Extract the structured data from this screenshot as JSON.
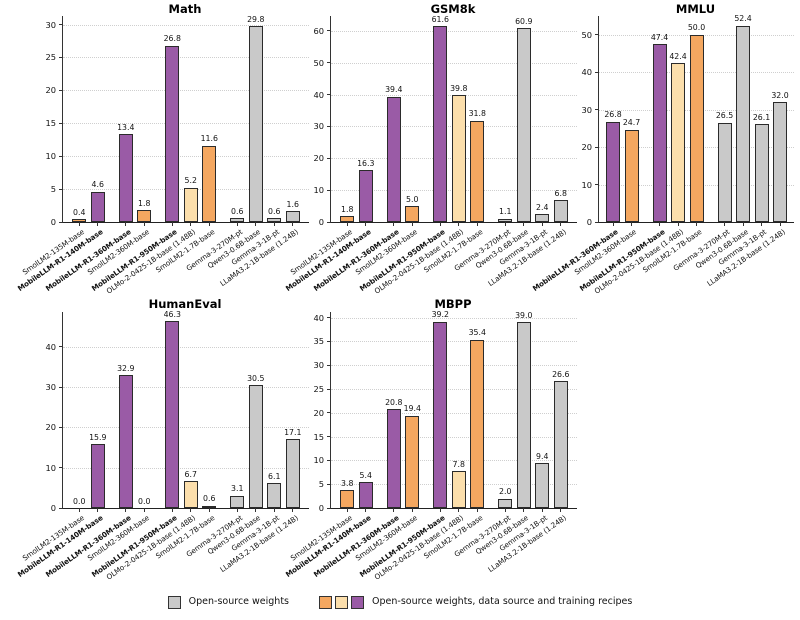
{
  "colors": {
    "purple": "#9A5BA6",
    "orange": "#F4A760",
    "cream": "#FCDFAC",
    "gray": "#C9C9C9"
  },
  "legend": {
    "position": "bottom-center",
    "items": [
      {
        "label": "Open-source weights",
        "patches": [
          "gray"
        ]
      },
      {
        "label": "Open-source weights, data source and training recipes",
        "patches": [
          "orange",
          "cream",
          "purple"
        ]
      }
    ]
  },
  "chart_data": [
    {
      "type": "bar",
      "title": "Math",
      "yticks": [
        0,
        5,
        10,
        15,
        20,
        25,
        30
      ],
      "ylim": [
        0,
        31.3
      ],
      "grid": true,
      "groups": [
        2,
        2,
        3,
        4
      ],
      "categories": [
        "SmolLM2-135M-base",
        "MobileLLM-R1-140M-base",
        "MobileLLM-R1-360M-base",
        "SmolLM2-360M-base",
        "MobileLLM-R1-950M-base",
        "OLMo-2-0425-1B-base (1.48B)",
        "SmolLM2-1.7B-base",
        "Gemma-3-270M-pt",
        "Qwen3-0.6B-base",
        "Gemma-3-1B-pt",
        "LLaMA3.2-1B-base (1.24B)"
      ],
      "values": [
        0.4,
        4.6,
        13.4,
        1.8,
        26.8,
        5.2,
        11.6,
        0.6,
        29.8,
        0.6,
        1.6
      ],
      "bar_colors": [
        "orange",
        "purple",
        "purple",
        "orange",
        "purple",
        "cream",
        "orange",
        "gray",
        "gray",
        "gray",
        "gray"
      ]
    },
    {
      "type": "bar",
      "title": "GSM8k",
      "yticks": [
        0,
        10,
        20,
        30,
        40,
        50,
        60
      ],
      "ylim": [
        0,
        64.7
      ],
      "grid": true,
      "groups": [
        2,
        2,
        3,
        4
      ],
      "categories": [
        "SmolLM2-135M-base",
        "MobileLLM-R1-140M-base",
        "MobileLLM-R1-360M-base",
        "SmolLM2-360M-base",
        "MobileLLM-R1-950M-base",
        "OLMo-2-0425-1B-base (1.48B)",
        "SmolLM2-1.7B-base",
        "Gemma-3-270M-pt",
        "Qwen3-0.6B-base",
        "Gemma-3-1B-pt",
        "LLaMA3.2-1B-base (1.24B)"
      ],
      "values": [
        1.8,
        16.3,
        39.4,
        5.0,
        61.6,
        39.8,
        31.8,
        1.1,
        60.9,
        2.4,
        6.8
      ],
      "bar_colors": [
        "orange",
        "purple",
        "purple",
        "orange",
        "purple",
        "cream",
        "orange",
        "gray",
        "gray",
        "gray",
        "gray"
      ]
    },
    {
      "type": "bar",
      "title": "MMLU",
      "yticks": [
        0,
        10,
        20,
        30,
        40,
        50
      ],
      "ylim": [
        0,
        55
      ],
      "grid": true,
      "groups": [
        2,
        3,
        4
      ],
      "categories": [
        "MobileLLM-R1-360M-base",
        "SmolLM2-360M-base",
        "MobileLLM-R1-950M-base",
        "OLMo-2-0425-1B-base (1.48B)",
        "SmolLM2-1.7B-base",
        "Gemma-3-270M-pt",
        "Qwen3-0.6B-base",
        "Gemma-3-1B-pt",
        "LLaMA3.2-1B-base (1.24B)"
      ],
      "values": [
        26.8,
        24.7,
        47.4,
        42.4,
        50.0,
        26.5,
        52.4,
        26.1,
        32.0
      ],
      "bar_colors": [
        "purple",
        "orange",
        "purple",
        "cream",
        "orange",
        "gray",
        "gray",
        "gray",
        "gray"
      ]
    },
    {
      "type": "bar",
      "title": "HumanEval",
      "yticks": [
        0,
        10,
        20,
        30,
        40
      ],
      "ylim": [
        0,
        48.6
      ],
      "grid": true,
      "groups": [
        2,
        2,
        3,
        4
      ],
      "categories": [
        "SmolLM2-135M-base",
        "MobileLLM-R1-140M-base",
        "MobileLLM-R1-360M-base",
        "SmolLM2-360M-base",
        "MobileLLM-R1-950M-base",
        "OLMo-2-0425-1B-base (1.48B)",
        "SmolLM2-1.7B-base",
        "Gemma-3-270M-pt",
        "Qwen3-0.6B-base",
        "Gemma-3-1B-pt",
        "LLaMA3.2-1B-base (1.24B)"
      ],
      "values": [
        0.0,
        15.9,
        32.9,
        0.0,
        46.3,
        6.7,
        0.6,
        3.1,
        30.5,
        6.1,
        17.1
      ],
      "bar_colors": [
        "orange",
        "purple",
        "purple",
        "orange",
        "purple",
        "cream",
        "orange",
        "gray",
        "gray",
        "gray",
        "gray"
      ]
    },
    {
      "type": "bar",
      "title": "MBPP",
      "yticks": [
        0,
        5,
        10,
        15,
        20,
        25,
        30,
        35,
        40
      ],
      "ylim": [
        0,
        41.2
      ],
      "grid": true,
      "groups": [
        2,
        2,
        3,
        4
      ],
      "categories": [
        "SmolLM2-135M-base",
        "MobileLLM-R1-140M-base",
        "MobileLLM-R1-360M-base",
        "SmolLM2-360M-base",
        "MobileLLM-R1-950M-base",
        "OLMo-2-0425-1B-base (1.48B)",
        "SmolLM2-1.7B-base",
        "Gemma-3-270M-pt",
        "Qwen3-0.6B-base",
        "Gemma-3-1B-pt",
        "LLaMA3.2-1B-base (1.24B)"
      ],
      "values": [
        3.8,
        5.4,
        20.8,
        19.4,
        39.2,
        7.8,
        35.4,
        2.0,
        39.0,
        9.4,
        26.6
      ],
      "bar_colors": [
        "orange",
        "purple",
        "purple",
        "orange",
        "purple",
        "cream",
        "orange",
        "gray",
        "gray",
        "gray",
        "gray"
      ]
    }
  ]
}
